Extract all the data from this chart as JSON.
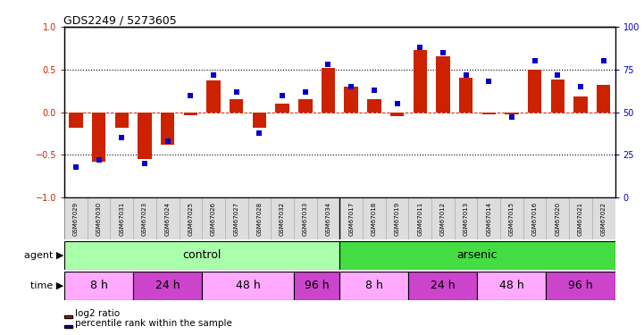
{
  "title": "GDS2249 / 5273605",
  "samples": [
    "GSM67029",
    "GSM67030",
    "GSM67031",
    "GSM67023",
    "GSM67024",
    "GSM67025",
    "GSM67026",
    "GSM67027",
    "GSM67028",
    "GSM67032",
    "GSM67033",
    "GSM67034",
    "GSM67017",
    "GSM67018",
    "GSM67019",
    "GSM67011",
    "GSM67012",
    "GSM67013",
    "GSM67014",
    "GSM67015",
    "GSM67016",
    "GSM67020",
    "GSM67021",
    "GSM67022"
  ],
  "log2_ratio": [
    -0.18,
    -0.58,
    -0.18,
    -0.55,
    -0.38,
    -0.04,
    0.37,
    0.15,
    -0.18,
    0.1,
    0.15,
    0.52,
    0.3,
    0.15,
    -0.05,
    0.73,
    0.65,
    0.4,
    -0.03,
    -0.02,
    0.5,
    0.38,
    0.18,
    0.32
  ],
  "percentile": [
    18,
    22,
    35,
    20,
    33,
    60,
    72,
    62,
    38,
    60,
    62,
    78,
    65,
    63,
    55,
    88,
    85,
    72,
    68,
    47,
    80,
    72,
    65,
    80
  ],
  "bar_color": "#cc2200",
  "dot_color": "#0000cc",
  "agent_groups": [
    {
      "label": "control",
      "start": 0,
      "end": 11,
      "color": "#aaffaa"
    },
    {
      "label": "arsenic",
      "start": 12,
      "end": 23,
      "color": "#44dd44"
    }
  ],
  "time_groups": [
    {
      "label": "8 h",
      "start": 0,
      "end": 2,
      "color": "#ffaaff"
    },
    {
      "label": "24 h",
      "start": 3,
      "end": 5,
      "color": "#cc44cc"
    },
    {
      "label": "48 h",
      "start": 6,
      "end": 9,
      "color": "#ffaaff"
    },
    {
      "label": "96 h",
      "start": 10,
      "end": 11,
      "color": "#cc44cc"
    },
    {
      "label": "8 h",
      "start": 12,
      "end": 14,
      "color": "#ffaaff"
    },
    {
      "label": "24 h",
      "start": 15,
      "end": 17,
      "color": "#cc44cc"
    },
    {
      "label": "48 h",
      "start": 18,
      "end": 20,
      "color": "#ffaaff"
    },
    {
      "label": "96 h",
      "start": 21,
      "end": 23,
      "color": "#cc44cc"
    }
  ],
  "ylim_left": [
    -1,
    1
  ],
  "ylim_right": [
    0,
    100
  ],
  "yticks_left": [
    -1,
    -0.5,
    0,
    0.5,
    1
  ],
  "yticks_right": [
    0,
    25,
    50,
    75,
    100
  ],
  "hlines_dotted": [
    -0.5,
    0.5
  ],
  "hline_zero": 0,
  "legend_items": [
    {
      "label": "log2 ratio",
      "color": "#cc2200"
    },
    {
      "label": "percentile rank within the sample",
      "color": "#0000cc"
    }
  ],
  "control_arsenic_boundary": 11.5,
  "n_samples": 24
}
